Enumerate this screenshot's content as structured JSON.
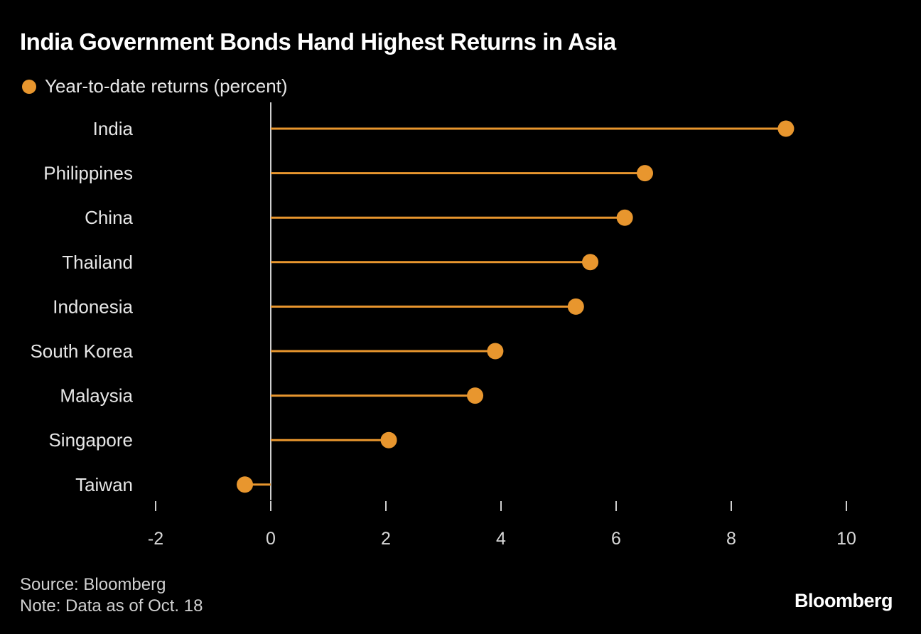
{
  "header": {
    "title": "India Government Bonds Hand Highest Returns in Asia"
  },
  "legend": {
    "label": "Year-to-date returns (percent)"
  },
  "footer": {
    "source": "Source: Bloomberg",
    "note": "Note: Data as of Oct. 18",
    "brand": "Bloomberg"
  },
  "colors": {
    "series": "#e8962e",
    "axis": "#cfcfcf",
    "background": "#000000"
  },
  "chart_data": {
    "type": "lollipop-bar",
    "orientation": "horizontal",
    "categories": [
      "India",
      "Philippines",
      "China",
      "Thailand",
      "Indonesia",
      "South Korea",
      "Malaysia",
      "Singapore",
      "Taiwan"
    ],
    "series": [
      {
        "name": "Year-to-date returns (percent)",
        "values": [
          8.95,
          6.5,
          6.15,
          5.55,
          5.3,
          3.9,
          3.55,
          2.05,
          -0.45
        ]
      }
    ],
    "xlim": [
      -2,
      10
    ],
    "xticks": [
      "-2",
      "0",
      "2",
      "4",
      "6",
      "8",
      "10"
    ],
    "grid": false,
    "legend_position": "top-left"
  }
}
